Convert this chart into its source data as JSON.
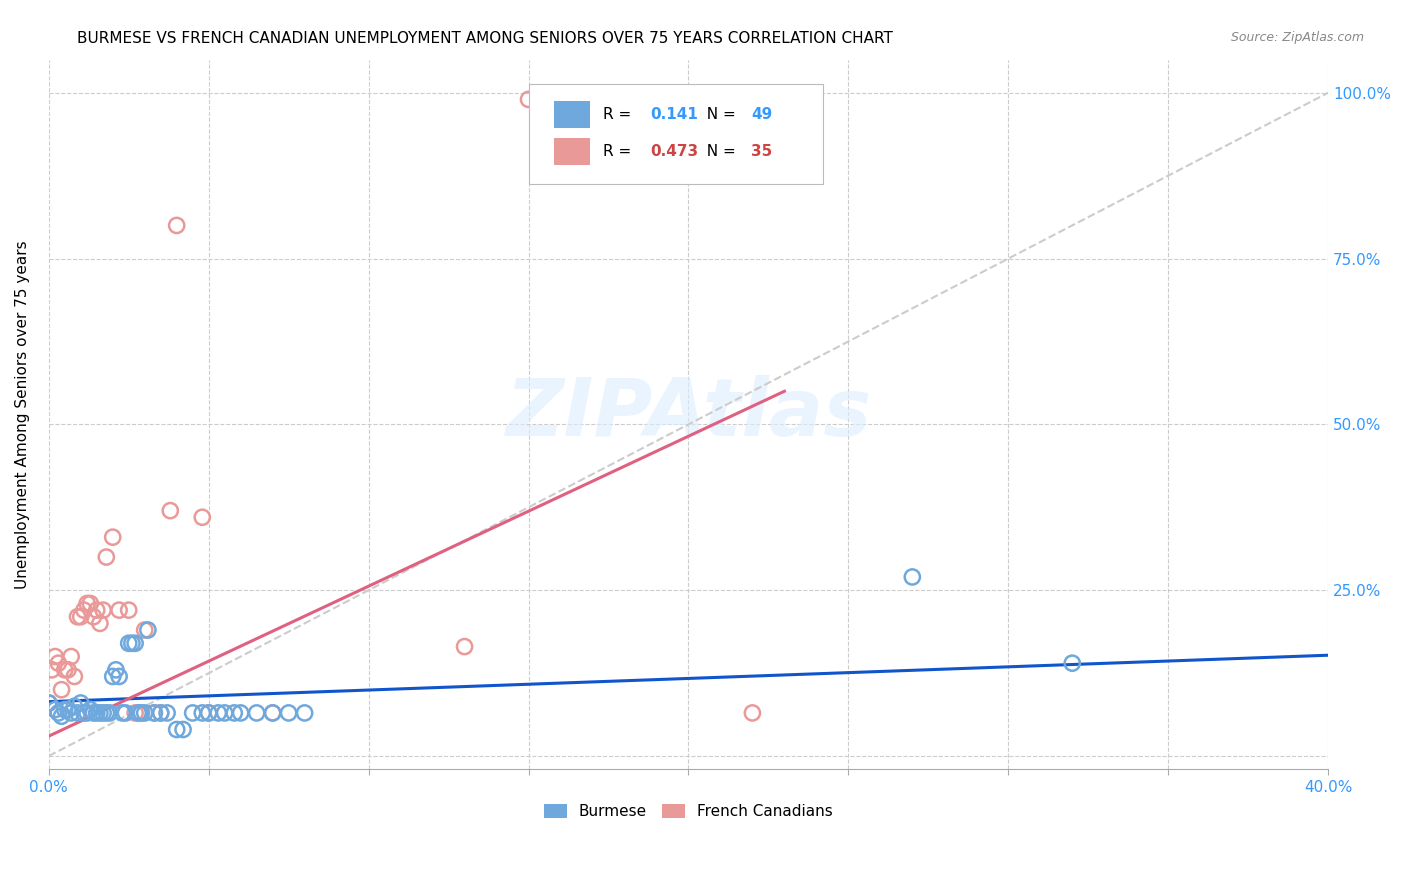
{
  "title": "BURMESE VS FRENCH CANADIAN UNEMPLOYMENT AMONG SENIORS OVER 75 YEARS CORRELATION CHART",
  "source": "Source: ZipAtlas.com",
  "ylabel_label": "Unemployment Among Seniors over 75 years",
  "xlim": [
    0.0,
    0.4
  ],
  "ylim": [
    -0.02,
    1.05
  ],
  "watermark": "ZIPAtlas",
  "legend_burmese_R": "0.141",
  "legend_burmese_N": "49",
  "legend_fc_R": "0.473",
  "legend_fc_N": "35",
  "burmese_color": "#6fa8dc",
  "fc_color": "#ea9999",
  "trendline_burmese_color": "#1155cc",
  "trendline_fc_color": "#ea9999",
  "trendline_diagonal_color": "#cccccc",
  "ytick_vals": [
    0.0,
    0.25,
    0.5,
    0.75,
    1.0
  ],
  "ytick_labels": [
    "",
    "25.0%",
    "50.0%",
    "75.0%",
    "100.0%"
  ],
  "xtick_vals": [
    0.0,
    0.05,
    0.1,
    0.15,
    0.2,
    0.25,
    0.3,
    0.35,
    0.4
  ],
  "xtick_labels": [
    "0.0%",
    "",
    "",
    "",
    "",
    "",
    "",
    "",
    "40.0%"
  ],
  "burmese_scatter": [
    [
      0.0,
      0.08
    ],
    [
      0.002,
      0.07
    ],
    [
      0.003,
      0.065
    ],
    [
      0.004,
      0.06
    ],
    [
      0.005,
      0.07
    ],
    [
      0.006,
      0.07
    ],
    [
      0.007,
      0.065
    ],
    [
      0.008,
      0.075
    ],
    [
      0.009,
      0.065
    ],
    [
      0.01,
      0.08
    ],
    [
      0.011,
      0.065
    ],
    [
      0.012,
      0.065
    ],
    [
      0.013,
      0.07
    ],
    [
      0.014,
      0.065
    ],
    [
      0.015,
      0.065
    ],
    [
      0.016,
      0.065
    ],
    [
      0.017,
      0.065
    ],
    [
      0.018,
      0.065
    ],
    [
      0.019,
      0.065
    ],
    [
      0.02,
      0.12
    ],
    [
      0.021,
      0.13
    ],
    [
      0.022,
      0.12
    ],
    [
      0.023,
      0.065
    ],
    [
      0.024,
      0.065
    ],
    [
      0.025,
      0.17
    ],
    [
      0.026,
      0.17
    ],
    [
      0.027,
      0.17
    ],
    [
      0.028,
      0.065
    ],
    [
      0.029,
      0.065
    ],
    [
      0.03,
      0.065
    ],
    [
      0.031,
      0.19
    ],
    [
      0.033,
      0.065
    ],
    [
      0.035,
      0.065
    ],
    [
      0.037,
      0.065
    ],
    [
      0.04,
      0.04
    ],
    [
      0.042,
      0.04
    ],
    [
      0.045,
      0.065
    ],
    [
      0.048,
      0.065
    ],
    [
      0.05,
      0.065
    ],
    [
      0.053,
      0.065
    ],
    [
      0.055,
      0.065
    ],
    [
      0.058,
      0.065
    ],
    [
      0.06,
      0.065
    ],
    [
      0.065,
      0.065
    ],
    [
      0.07,
      0.065
    ],
    [
      0.075,
      0.065
    ],
    [
      0.08,
      0.065
    ],
    [
      0.27,
      0.27
    ],
    [
      0.32,
      0.14
    ]
  ],
  "fc_scatter": [
    [
      0.0,
      0.08
    ],
    [
      0.001,
      0.13
    ],
    [
      0.002,
      0.15
    ],
    [
      0.003,
      0.14
    ],
    [
      0.004,
      0.1
    ],
    [
      0.005,
      0.13
    ],
    [
      0.006,
      0.13
    ],
    [
      0.007,
      0.15
    ],
    [
      0.008,
      0.12
    ],
    [
      0.009,
      0.21
    ],
    [
      0.01,
      0.21
    ],
    [
      0.011,
      0.22
    ],
    [
      0.012,
      0.23
    ],
    [
      0.013,
      0.23
    ],
    [
      0.014,
      0.21
    ],
    [
      0.015,
      0.22
    ],
    [
      0.016,
      0.2
    ],
    [
      0.017,
      0.22
    ],
    [
      0.018,
      0.3
    ],
    [
      0.02,
      0.33
    ],
    [
      0.022,
      0.22
    ],
    [
      0.025,
      0.22
    ],
    [
      0.027,
      0.065
    ],
    [
      0.028,
      0.065
    ],
    [
      0.03,
      0.19
    ],
    [
      0.033,
      0.065
    ],
    [
      0.035,
      0.065
    ],
    [
      0.038,
      0.37
    ],
    [
      0.04,
      0.8
    ],
    [
      0.048,
      0.36
    ],
    [
      0.05,
      0.065
    ],
    [
      0.07,
      0.065
    ],
    [
      0.15,
      0.99
    ],
    [
      0.22,
      0.065
    ],
    [
      0.13,
      0.165
    ]
  ],
  "trendline_burmese": [
    [
      0.0,
      0.082
    ],
    [
      0.4,
      0.152
    ]
  ],
  "trendline_fc": [
    [
      0.0,
      0.03
    ],
    [
      0.23,
      0.55
    ]
  ],
  "trendline_diagonal": [
    [
      0.0,
      0.0
    ],
    [
      0.4,
      1.0
    ]
  ]
}
